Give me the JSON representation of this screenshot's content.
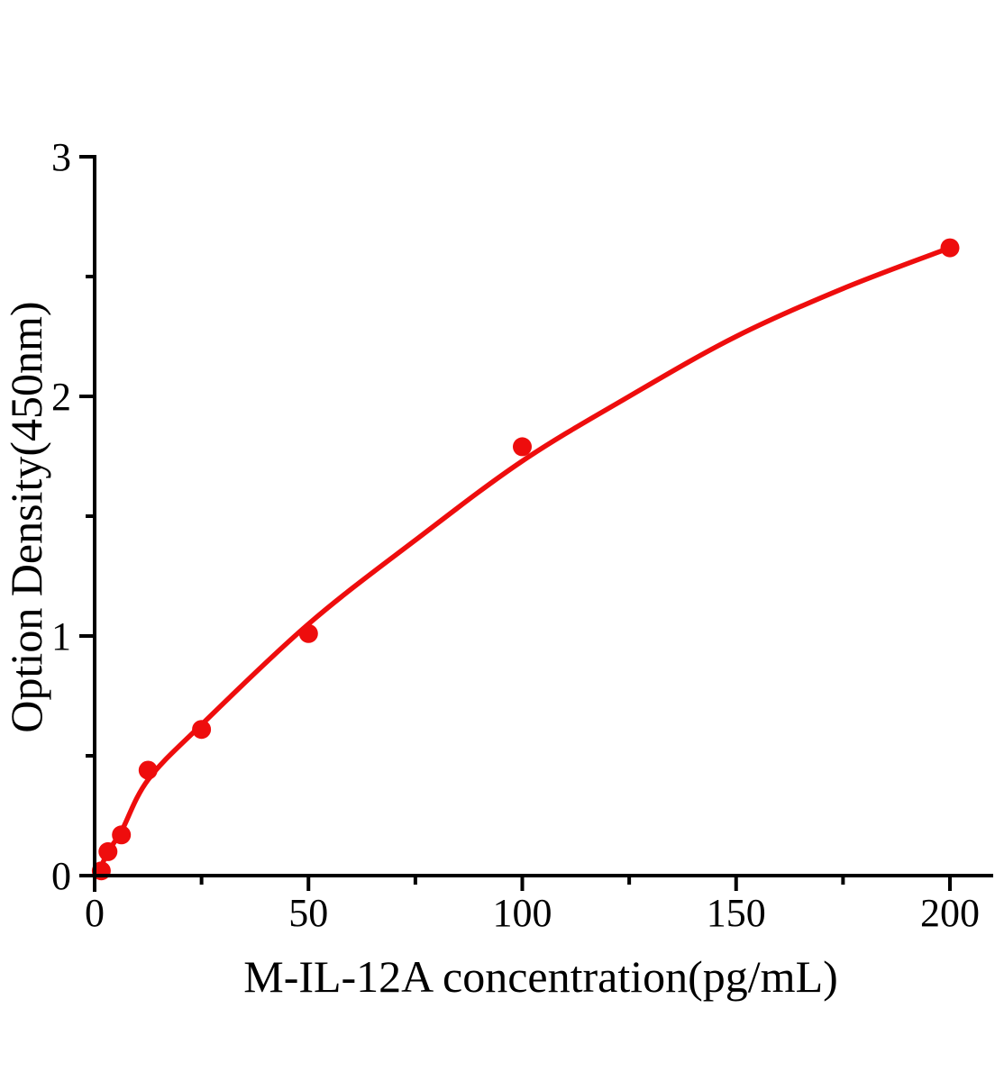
{
  "figure": {
    "background_color": "#ffffff",
    "axis_color": "#000000",
    "accent_color": "#ee0d0d"
  },
  "chart_data": {
    "type": "scatter",
    "title": "",
    "xlabel": "M-IL-12A concentration(pg/mL)",
    "ylabel": "Option Density(450nm)",
    "xlim": [
      0,
      210
    ],
    "ylim": [
      0,
      3
    ],
    "grid": false,
    "legend": false,
    "x_major_ticks": [
      0,
      50,
      100,
      150,
      200
    ],
    "x_minor_ticks": [
      25,
      75,
      125,
      175
    ],
    "y_major_ticks": [
      0,
      1,
      2,
      3
    ],
    "y_minor_ticks": [
      0.5,
      1.5,
      2.5
    ],
    "series": [
      {
        "marker": "circle",
        "marker_color": "#ee0d0d",
        "line_color": "#ee0d0d",
        "points": [
          {
            "x": 1.5625,
            "y": 0.02
          },
          {
            "x": 3.125,
            "y": 0.1
          },
          {
            "x": 6.25,
            "y": 0.17
          },
          {
            "x": 12.5,
            "y": 0.44
          },
          {
            "x": 25,
            "y": 0.61
          },
          {
            "x": 50,
            "y": 1.01
          },
          {
            "x": 100,
            "y": 1.79
          },
          {
            "x": 200,
            "y": 2.62
          }
        ],
        "fit_curve": [
          {
            "x": 0.9,
            "y": 0.01
          },
          {
            "x": 3.125,
            "y": 0.1
          },
          {
            "x": 6.25,
            "y": 0.185
          },
          {
            "x": 12.5,
            "y": 0.4
          },
          {
            "x": 25,
            "y": 0.63
          },
          {
            "x": 50,
            "y": 1.05
          },
          {
            "x": 75,
            "y": 1.4
          },
          {
            "x": 100,
            "y": 1.73
          },
          {
            "x": 125,
            "y": 2.0
          },
          {
            "x": 150,
            "y": 2.25
          },
          {
            "x": 175,
            "y": 2.45
          },
          {
            "x": 200,
            "y": 2.62
          }
        ]
      }
    ]
  }
}
